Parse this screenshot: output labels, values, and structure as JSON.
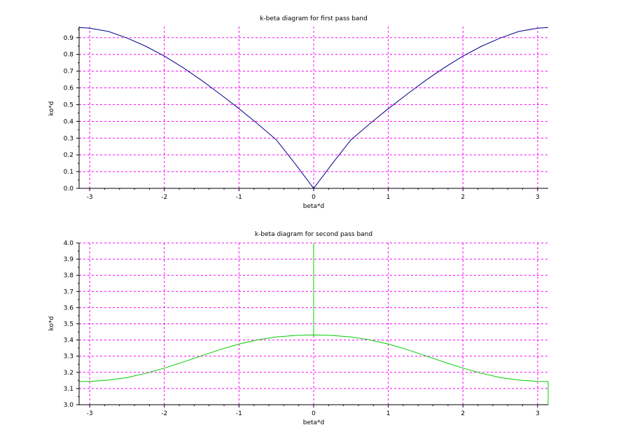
{
  "chart_data": [
    {
      "type": "line",
      "title": "k-beta diagram for first pass band",
      "xlabel": "beta*d",
      "ylabel": "ko*d",
      "xlim": [
        -3.14159,
        3.14159
      ],
      "ylim": [
        0,
        0.966
      ],
      "xticks": [
        -3,
        -2,
        -1,
        0,
        1,
        2,
        3
      ],
      "xtick_labels": [
        "-3",
        "-2",
        "-1",
        "0",
        "1",
        "2",
        "3"
      ],
      "yticks": [
        0,
        0.1,
        0.2,
        0.3,
        0.4,
        0.5,
        0.6,
        0.7,
        0.8,
        0.9
      ],
      "ytick_labels": [
        "0.0",
        "0.1",
        "0.2",
        "0.3",
        "0.4",
        "0.5",
        "0.6",
        "0.7",
        "0.8",
        "0.9"
      ],
      "grid": true,
      "series": [
        {
          "color": "#00008b",
          "x": [
            -3.14159,
            -3.0,
            -2.75,
            -2.5,
            -2.25,
            -2.0,
            -1.75,
            -1.5,
            -1.25,
            -1.0,
            -0.75,
            -0.5,
            -0.25,
            0.0,
            0.25,
            0.5,
            0.75,
            1.0,
            1.25,
            1.5,
            1.75,
            2.0,
            2.25,
            2.5,
            2.75,
            3.0,
            3.14159
          ],
          "y": [
            0.961,
            0.957,
            0.937,
            0.898,
            0.849,
            0.79,
            0.721,
            0.645,
            0.562,
            0.476,
            0.385,
            0.29,
            0.148,
            0.0,
            0.148,
            0.29,
            0.385,
            0.476,
            0.562,
            0.645,
            0.721,
            0.79,
            0.849,
            0.898,
            0.937,
            0.957,
            0.961
          ]
        }
      ]
    },
    {
      "type": "line",
      "title": "k-beta diagram for second pass band",
      "xlabel": "beta*d",
      "ylabel": "ko*d",
      "xlim": [
        -3.14159,
        3.14159
      ],
      "ylim": [
        3.0,
        4.0
      ],
      "xticks": [
        -3,
        -2,
        -1,
        0,
        1,
        2,
        3
      ],
      "xtick_labels": [
        "-3",
        "-2",
        "-1",
        "0",
        "1",
        "2",
        "3"
      ],
      "yticks": [
        3.0,
        3.1,
        3.2,
        3.3,
        3.4,
        3.5,
        3.6,
        3.7,
        3.8,
        3.9,
        4.0
      ],
      "ytick_labels": [
        "3.0",
        "3.1",
        "3.2",
        "3.3",
        "3.4",
        "3.5",
        "3.6",
        "3.7",
        "3.8",
        "3.9",
        "4.0"
      ],
      "grid": true,
      "series": [
        {
          "color": "#00cc00",
          "x": [
            -3.14159,
            -3.0,
            -2.75,
            -2.5,
            -2.25,
            -2.0,
            -1.75,
            -1.5,
            -1.25,
            -1.0,
            -0.75,
            -0.5,
            -0.25,
            0.0,
            0.25,
            0.5,
            0.75,
            1.0,
            1.25,
            1.5,
            1.75,
            2.0,
            2.25,
            2.5,
            2.75,
            3.0,
            3.14159
          ],
          "y": [
            3.143,
            3.144,
            3.152,
            3.168,
            3.194,
            3.226,
            3.263,
            3.302,
            3.341,
            3.375,
            3.401,
            3.419,
            3.428,
            3.431,
            3.428,
            3.419,
            3.401,
            3.375,
            3.341,
            3.302,
            3.263,
            3.226,
            3.194,
            3.168,
            3.152,
            3.144,
            3.143
          ]
        }
      ],
      "vertical_segments": [
        {
          "x": -3.14159,
          "y_from": 3.0,
          "y_to": 3.143
        },
        {
          "x": 0.0,
          "y_from": 3.431,
          "y_to": 4.0
        },
        {
          "x": 3.14159,
          "y_from": 3.0,
          "y_to": 3.143
        }
      ]
    }
  ]
}
